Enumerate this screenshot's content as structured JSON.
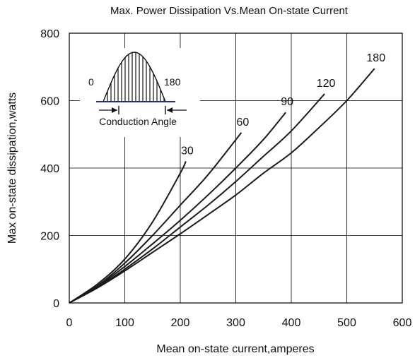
{
  "chart_data": {
    "type": "line",
    "title": "Max. Power Dissipation Vs.Mean On-state Current",
    "xlabel": "Mean on-state current,amperes",
    "ylabel": "Max on-state dissipation,watts",
    "xlim": [
      0,
      600
    ],
    "ylim": [
      0,
      800
    ],
    "xticks": [
      "0",
      "100",
      "200",
      "300",
      "400",
      "500",
      "600"
    ],
    "yticks": [
      "0",
      "200",
      "400",
      "600",
      "800"
    ],
    "grid": true,
    "series": [
      {
        "name": "30",
        "x": [
          0,
          50,
          100,
          150,
          200,
          210
        ],
        "y": [
          0,
          55,
          130,
          240,
          385,
          420
        ]
      },
      {
        "name": "60",
        "x": [
          0,
          50,
          100,
          150,
          200,
          250,
          310
        ],
        "y": [
          0,
          50,
          118,
          200,
          290,
          380,
          505
        ]
      },
      {
        "name": "90",
        "x": [
          0,
          50,
          100,
          150,
          200,
          250,
          300,
          350,
          390
        ],
        "y": [
          0,
          48,
          108,
          175,
          245,
          320,
          400,
          485,
          565
        ]
      },
      {
        "name": "120",
        "x": [
          0,
          50,
          100,
          150,
          200,
          250,
          300,
          350,
          400,
          460
        ],
        "y": [
          0,
          45,
          100,
          160,
          225,
          290,
          360,
          435,
          510,
          620
        ]
      },
      {
        "name": "180",
        "x": [
          0,
          50,
          100,
          150,
          200,
          250,
          300,
          350,
          400,
          450,
          500,
          550
        ],
        "y": [
          0,
          44,
          95,
          150,
          205,
          262,
          320,
          385,
          445,
          520,
          600,
          695
        ]
      }
    ],
    "inset": {
      "label_start": "0",
      "label_end": "180",
      "caption": "Conduction Angle"
    }
  },
  "colors": {
    "line": "#1a1a1a",
    "grid": "#000000",
    "baseline": "#2b2f7a"
  }
}
